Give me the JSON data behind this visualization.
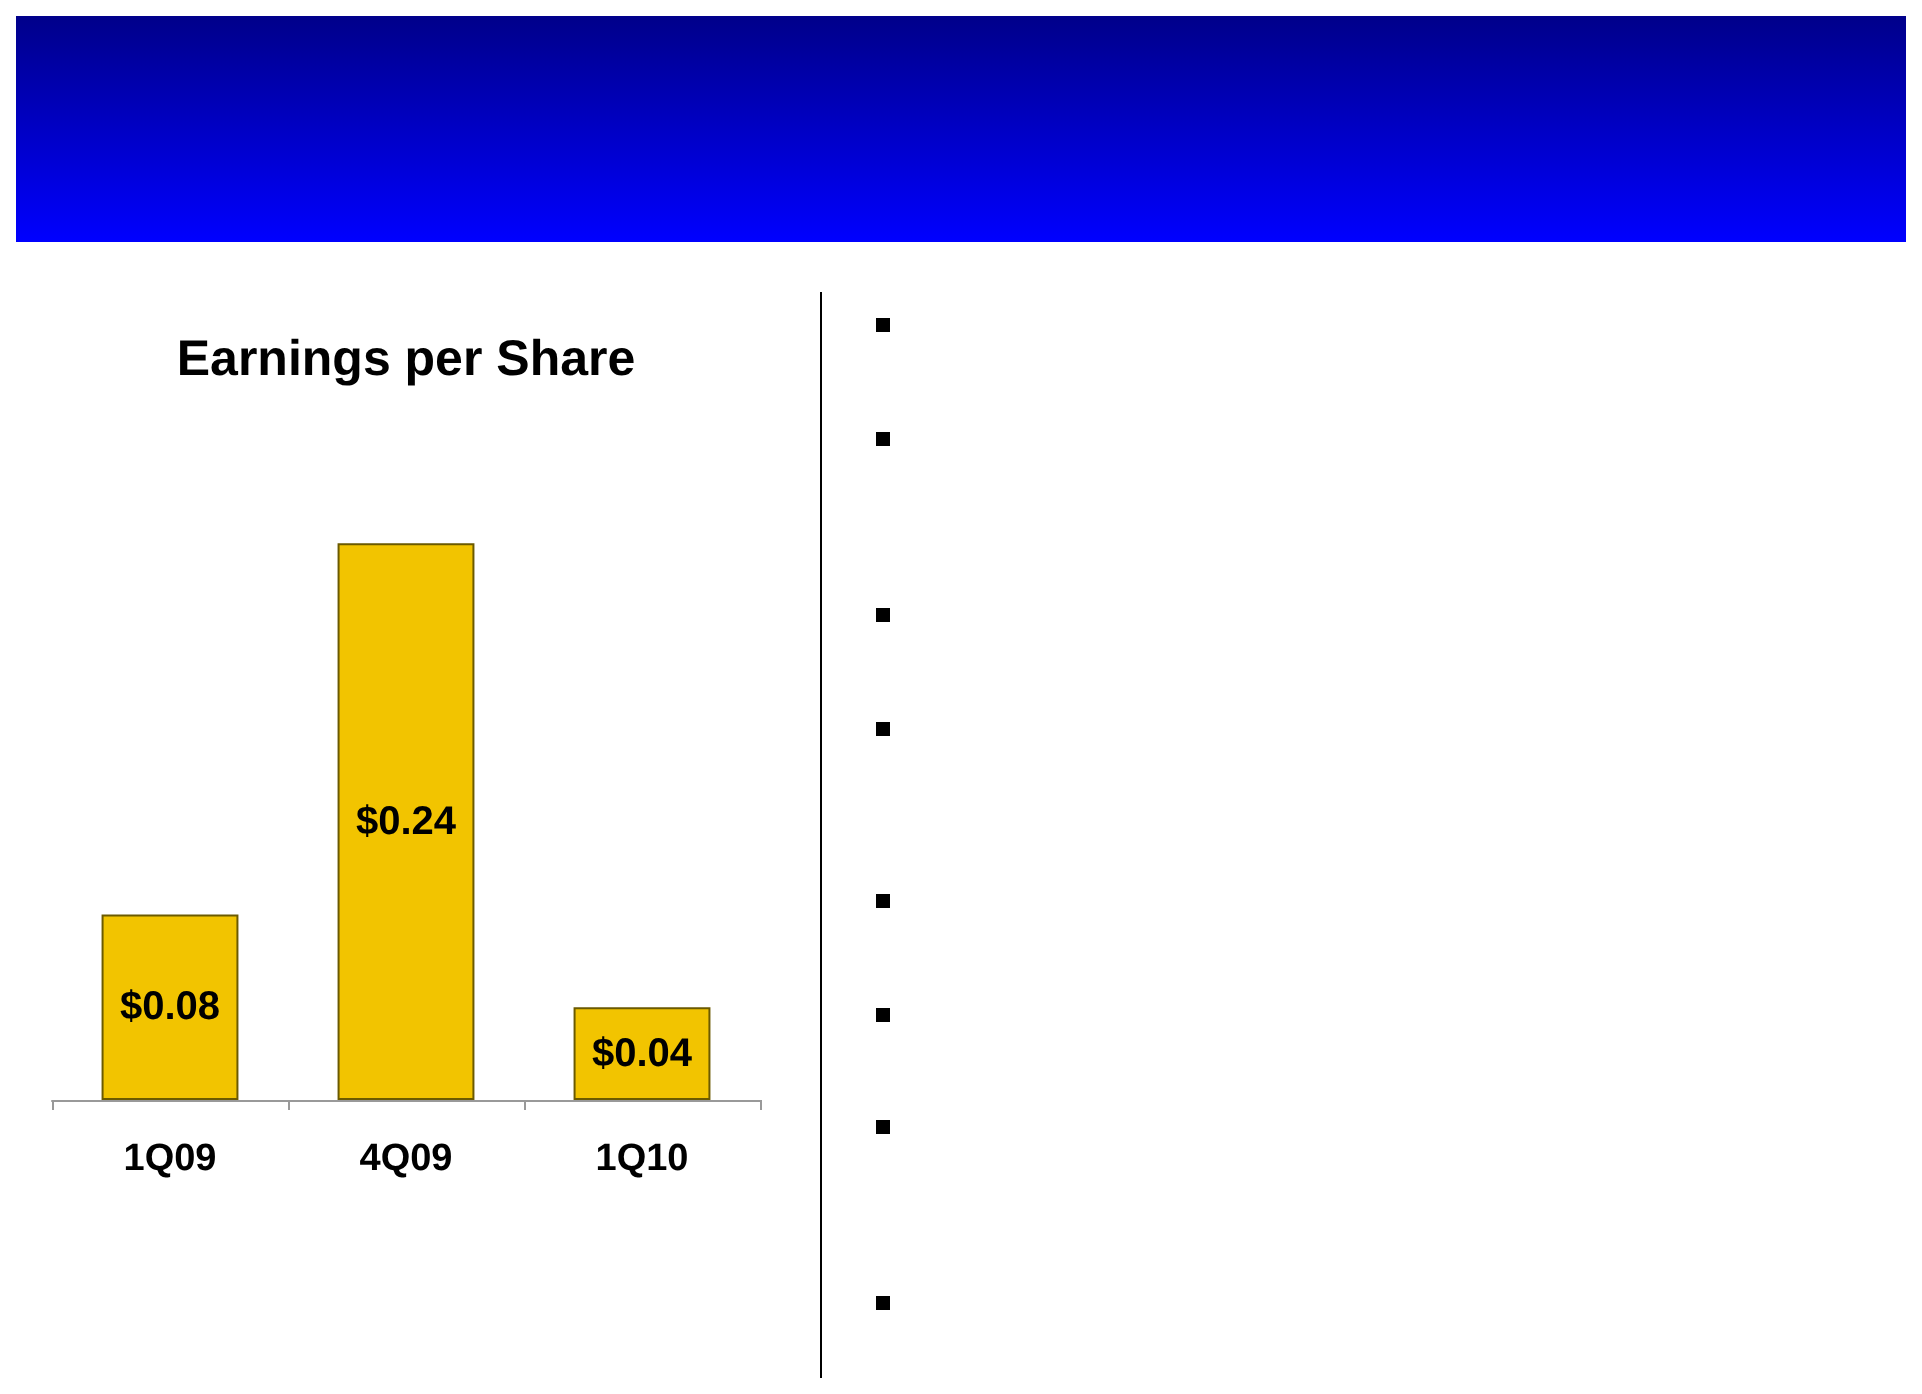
{
  "chart_data": {
    "type": "bar",
    "title": "Earnings per Share",
    "categories": [
      "1Q09",
      "4Q09",
      "1Q10"
    ],
    "values": [
      0.08,
      0.24,
      0.04
    ],
    "value_labels": [
      "$0.08",
      "$0.24",
      "$0.04"
    ],
    "color": "#f2c400"
  }
}
